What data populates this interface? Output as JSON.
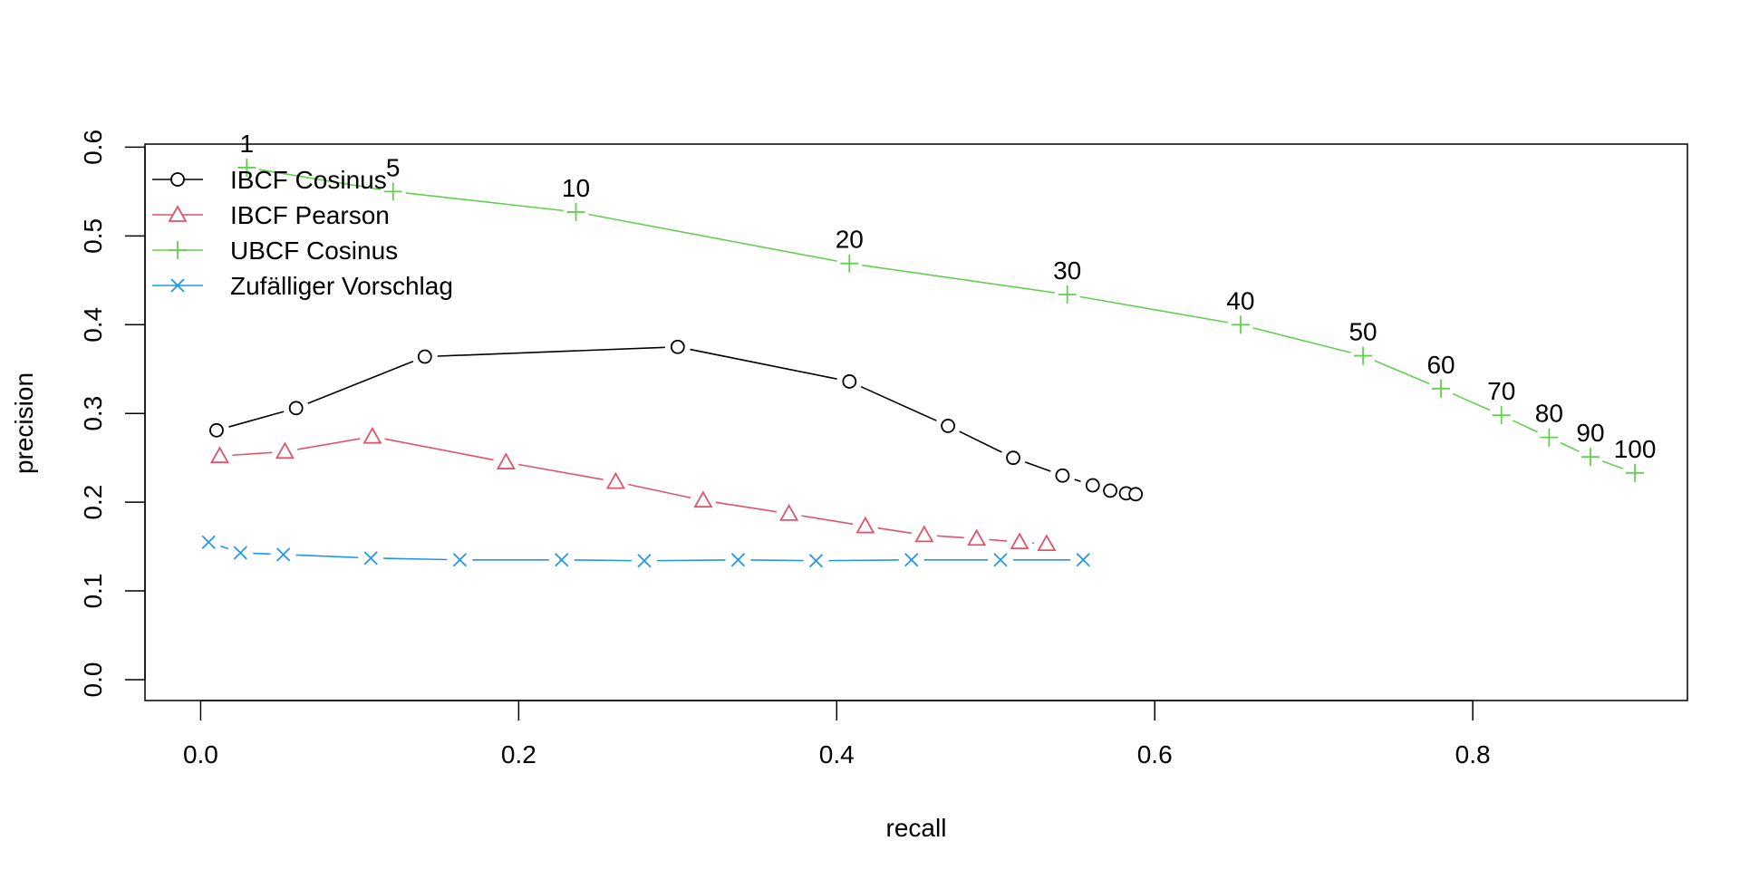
{
  "chart_data": {
    "type": "line",
    "xlabel": "recall",
    "ylabel": "precision",
    "xlim": [
      -0.035,
      0.935
    ],
    "ylim": [
      -0.0235,
      0.6035
    ],
    "x_ticks": [
      0.0,
      0.2,
      0.4,
      0.6,
      0.8
    ],
    "y_ticks": [
      0.0,
      0.1,
      0.2,
      0.3,
      0.4,
      0.5,
      0.6
    ],
    "grid": false,
    "legend_position": "top-left",
    "series": [
      {
        "name": "IBCF Cosinus",
        "color": "#000000",
        "marker": "circle",
        "x": [
          0.01,
          0.06,
          0.141,
          0.3,
          0.408,
          0.47,
          0.511,
          0.542,
          0.561,
          0.572,
          0.582,
          0.588
        ],
        "y": [
          0.281,
          0.306,
          0.364,
          0.375,
          0.336,
          0.286,
          0.25,
          0.23,
          0.219,
          0.213,
          0.21,
          0.209
        ]
      },
      {
        "name": "IBCF Pearson",
        "color": "#DF536B",
        "marker": "triangle",
        "x": [
          0.012,
          0.053,
          0.108,
          0.192,
          0.261,
          0.316,
          0.37,
          0.418,
          0.455,
          0.488,
          0.515,
          0.532
        ],
        "y": [
          0.252,
          0.257,
          0.274,
          0.245,
          0.223,
          0.202,
          0.187,
          0.173,
          0.163,
          0.159,
          0.155,
          0.153
        ]
      },
      {
        "name": "UBCF Cosinus",
        "color": "#61D04F",
        "marker": "plus",
        "labels": [
          "1",
          "5",
          "10",
          "20",
          "30",
          "40",
          "50",
          "60",
          "70",
          "80",
          "90",
          "100"
        ],
        "x": [
          0.029,
          0.121,
          0.236,
          0.408,
          0.545,
          0.654,
          0.731,
          0.78,
          0.818,
          0.848,
          0.874,
          0.902
        ],
        "y": [
          0.577,
          0.55,
          0.527,
          0.469,
          0.434,
          0.4,
          0.365,
          0.328,
          0.298,
          0.273,
          0.251,
          0.233
        ]
      },
      {
        "name": "Zufälliger Vorschlag",
        "color": "#2297E6",
        "marker": "x",
        "x": [
          0.005,
          0.025,
          0.052,
          0.107,
          0.163,
          0.227,
          0.279,
          0.338,
          0.387,
          0.447,
          0.503,
          0.555
        ],
        "y": [
          0.155,
          0.143,
          0.141,
          0.137,
          0.135,
          0.135,
          0.134,
          0.135,
          0.134,
          0.135,
          0.135,
          0.135
        ]
      }
    ]
  }
}
